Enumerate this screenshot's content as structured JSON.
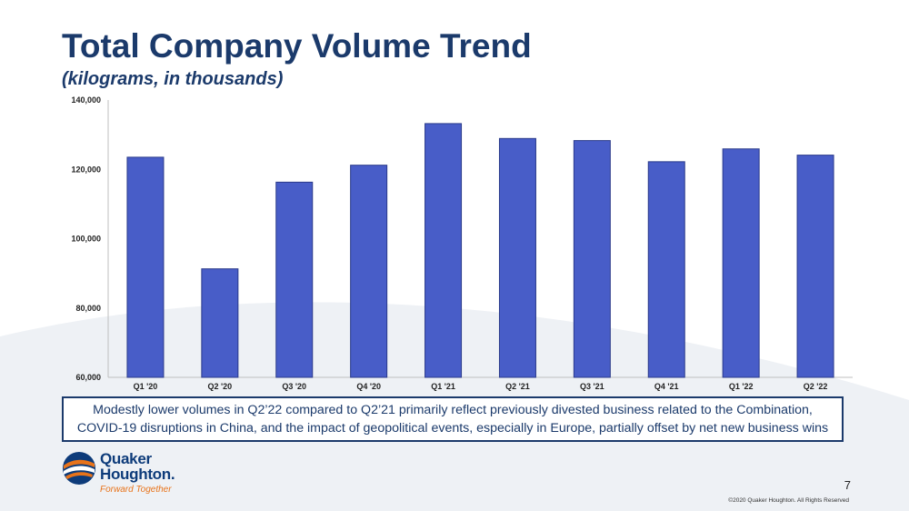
{
  "header": {
    "title": "Total Company Volume Trend",
    "subtitle": "(kilograms, in thousands)"
  },
  "chart_data": {
    "type": "bar",
    "categories": [
      "Q1 '20",
      "Q2 '20",
      "Q3 '20",
      "Q4 '20",
      "Q1 '21",
      "Q2 '21",
      "Q3 '21",
      "Q4 '21",
      "Q1 '22",
      "Q2 '22"
    ],
    "values": [
      123500,
      91300,
      116300,
      121200,
      133200,
      128900,
      128300,
      122200,
      125900,
      124100
    ],
    "ylim": [
      60000,
      140000
    ],
    "yticks": [
      60000,
      80000,
      100000,
      120000,
      140000
    ],
    "ytick_labels": [
      "60,000",
      "80,000",
      "100,000",
      "120,000",
      "140,000"
    ],
    "xlabel": "",
    "ylabel": "",
    "grid": false,
    "bar_color": "#485dc8",
    "bar_outline": "#2a3a8a"
  },
  "callout": {
    "line1": "Modestly lower volumes in Q2’22 compared to Q2’21 primarily reflect previously divested business related to the Combination,",
    "line2": "COVID-19 disruptions in China, and the impact of geopolitical events, especially in Europe, partially offset by net new business wins"
  },
  "logo": {
    "line1": "Quaker",
    "line2": "Houghton.",
    "tagline": "Forward Together"
  },
  "footer": {
    "page_number": "7",
    "copyright": "©2020 Quaker Houghton. All Rights Reserved"
  },
  "colors": {
    "title": "#1b3a6b",
    "logo_blue": "#0d3b7a",
    "logo_orange": "#e8731a"
  }
}
